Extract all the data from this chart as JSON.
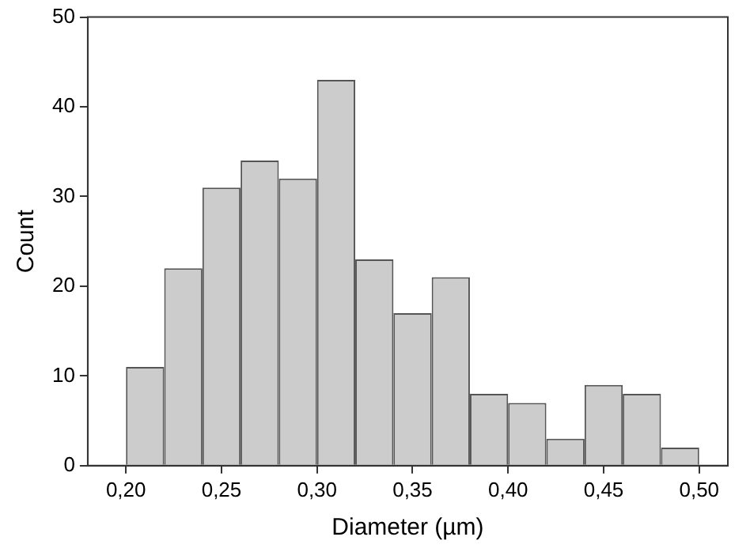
{
  "chart_data": {
    "type": "histogram",
    "xlabel": "Diameter (µm)",
    "ylabel": "Count",
    "bins": [
      0.2,
      0.22,
      0.24,
      0.26,
      0.28,
      0.3,
      0.32,
      0.34,
      0.36,
      0.38,
      0.4,
      0.42,
      0.44,
      0.46,
      0.48,
      0.5
    ],
    "values": [
      11,
      22,
      31,
      34,
      32,
      43,
      23,
      17,
      21,
      8,
      7,
      3,
      9,
      8,
      2
    ],
    "color": "#cccccc",
    "xlim": [
      0.18,
      0.515
    ],
    "xticks": [
      {
        "value": 0.2,
        "label": "0,20"
      },
      {
        "value": 0.25,
        "label": "0,25"
      },
      {
        "value": 0.3,
        "label": "0,30"
      },
      {
        "value": 0.35,
        "label": "0,35"
      },
      {
        "value": 0.4,
        "label": "0,40"
      },
      {
        "value": 0.45,
        "label": "0,45"
      },
      {
        "value": 0.5,
        "label": "0,50"
      }
    ],
    "ylim": [
      0,
      50
    ],
    "yticks": [
      0,
      10,
      20,
      30,
      40,
      50
    ],
    "grid": false,
    "legend": false
  }
}
